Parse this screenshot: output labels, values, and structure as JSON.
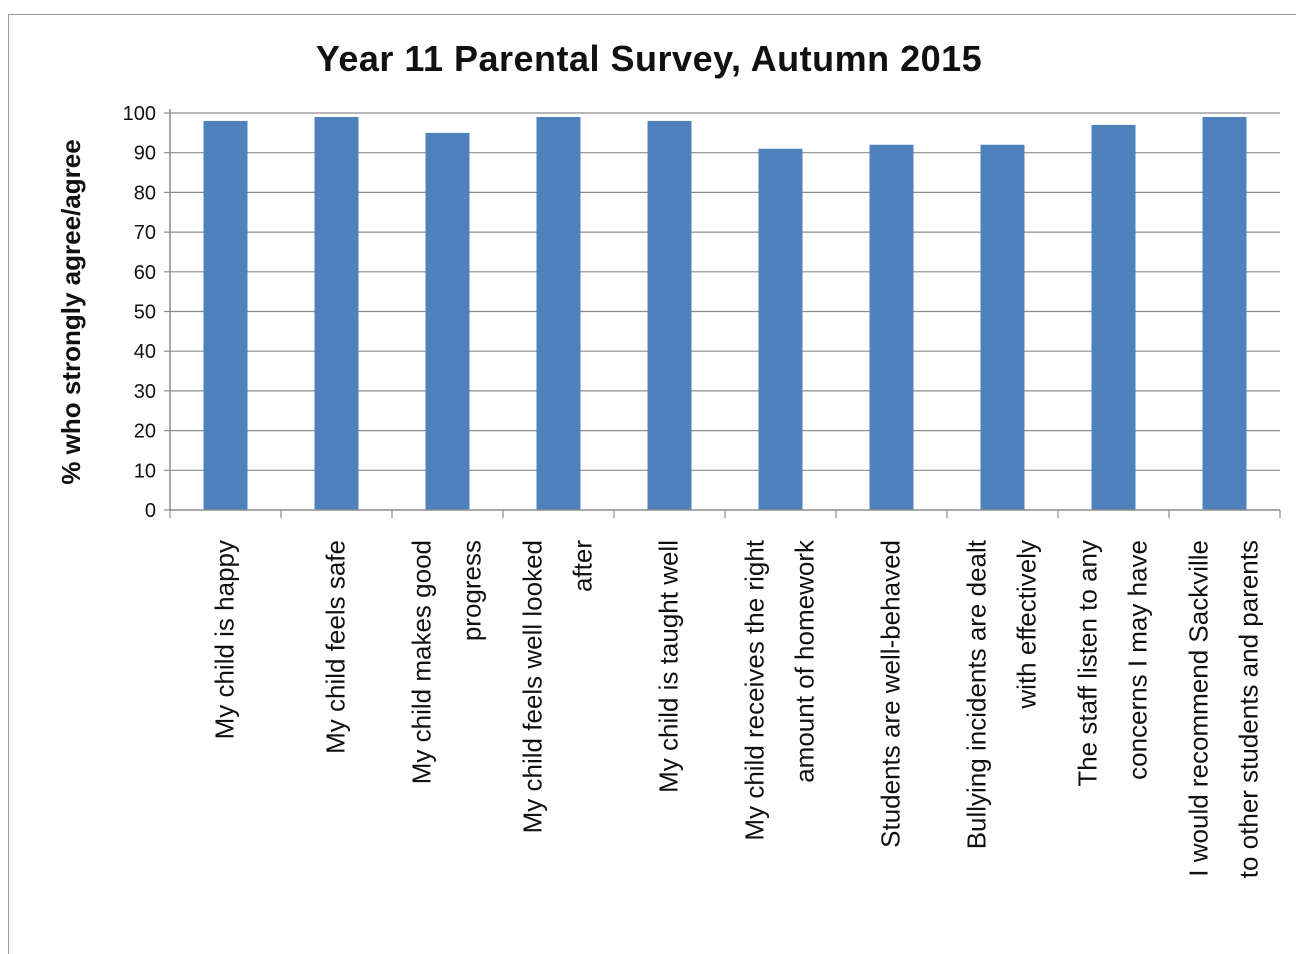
{
  "chart_data": {
    "type": "bar",
    "title": "Year 11 Parental Survey, Autumn 2015",
    "xlabel": "",
    "ylabel": "% who strongly agree/agree",
    "ylim": [
      0,
      100
    ],
    "yticks": [
      0,
      10,
      20,
      30,
      40,
      50,
      60,
      70,
      80,
      90,
      100
    ],
    "grid": true,
    "bar_color": "#4f81bd",
    "categories": [
      [
        "My child is happy"
      ],
      [
        "My child feels safe"
      ],
      [
        "My child makes good",
        "progress"
      ],
      [
        "My child feels well looked",
        "after"
      ],
      [
        "My child is taught well"
      ],
      [
        "My child receives the right",
        "amount of homework"
      ],
      [
        "Students are well-behaved"
      ],
      [
        "Bullying incidents are dealt",
        "with effectively"
      ],
      [
        "The staff listen to any",
        "concerns I may have"
      ],
      [
        "I would recommend Sackville",
        "to other students and parents"
      ]
    ],
    "values": [
      98,
      99,
      95,
      99,
      98,
      91,
      92,
      92,
      97,
      99
    ]
  }
}
